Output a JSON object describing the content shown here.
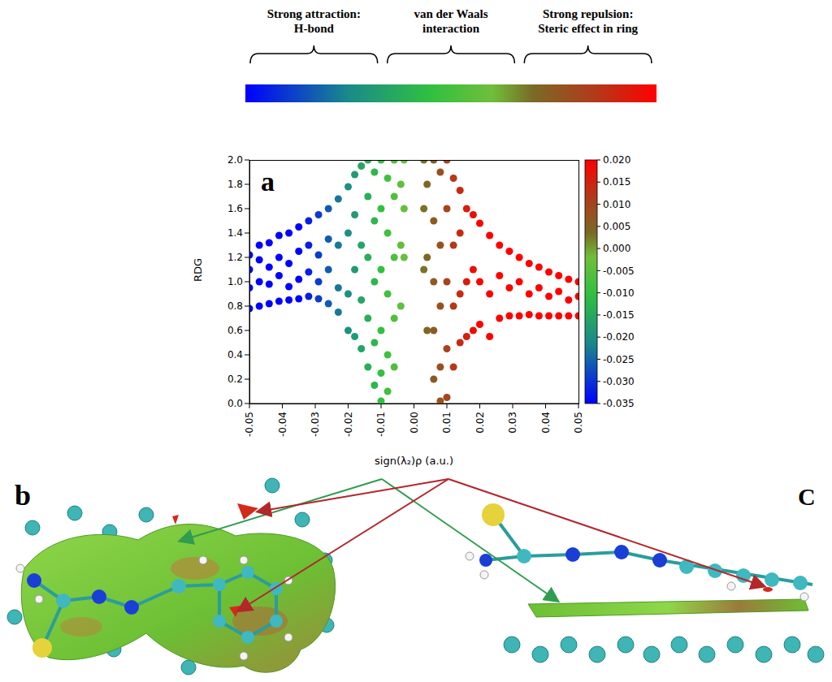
{
  "legend_bar": {
    "labels": [
      {
        "lines": [
          "Strong attraction:",
          "H-bond"
        ]
      },
      {
        "lines": [
          "van der Waals",
          "interaction"
        ]
      },
      {
        "lines": [
          "Strong repulsion:",
          "Steric effect in ring"
        ]
      }
    ]
  },
  "chart_data": {
    "type": "scatter",
    "panel": "a",
    "x_label": "sign(λ₂)ρ (a.u.)",
    "y_label": "RDG",
    "xlim": [
      -0.05,
      0.05
    ],
    "xticks": [
      -0.05,
      -0.04,
      -0.03,
      -0.02,
      -0.01,
      {
        "value": 0,
        "label": "0.00"
      },
      0.01,
      0.02,
      0.03,
      0.04,
      0.05
    ],
    "ylim": [
      0,
      2
    ],
    "yticks": [
      {
        "value": 0,
        "label": "0.0"
      },
      0.2,
      0.4,
      0.6,
      0.8,
      {
        "value": 1,
        "label": "1.0"
      },
      1.2,
      1.4,
      1.6,
      1.8,
      {
        "value": 2,
        "label": "2.0"
      }
    ],
    "colorbar": {
      "range": [
        -0.035,
        0.02
      ],
      "ticks": [
        {
          "value": 0.02,
          "label": "0.020"
        },
        0.015,
        {
          "value": 0.01,
          "label": "0.010"
        },
        0.005,
        {
          "value": 0,
          "label": "0.000"
        },
        -0.005,
        {
          "value": -0.01,
          "label": "-0.010"
        },
        -0.015,
        {
          "value": -0.02,
          "label": "-0.020"
        },
        -0.025,
        {
          "value": -0.03,
          "label": "-0.030"
        },
        -0.035
      ]
    },
    "points": [
      [
        -0.05,
        0.78
      ],
      [
        -0.05,
        0.95
      ],
      [
        -0.05,
        1.1
      ],
      [
        -0.05,
        1.22
      ],
      [
        -0.047,
        0.8
      ],
      [
        -0.047,
        1.0
      ],
      [
        -0.047,
        1.18
      ],
      [
        -0.047,
        1.3
      ],
      [
        -0.044,
        0.82
      ],
      [
        -0.044,
        0.98
      ],
      [
        -0.044,
        1.12
      ],
      [
        -0.044,
        1.32
      ],
      [
        -0.041,
        0.84
      ],
      [
        -0.041,
        1.05
      ],
      [
        -0.041,
        1.2
      ],
      [
        -0.041,
        1.38
      ],
      [
        -0.038,
        0.85
      ],
      [
        -0.038,
        0.96
      ],
      [
        -0.038,
        1.15
      ],
      [
        -0.038,
        1.4
      ],
      [
        -0.035,
        0.86
      ],
      [
        -0.035,
        1.02
      ],
      [
        -0.035,
        1.25
      ],
      [
        -0.035,
        1.45
      ],
      [
        -0.032,
        0.88
      ],
      [
        -0.032,
        1.08
      ],
      [
        -0.032,
        1.3
      ],
      [
        -0.032,
        1.5
      ],
      [
        -0.029,
        0.86
      ],
      [
        -0.029,
        1.0
      ],
      [
        -0.029,
        1.22
      ],
      [
        -0.029,
        1.55
      ],
      [
        -0.026,
        0.82
      ],
      [
        -0.026,
        1.1
      ],
      [
        -0.026,
        1.35
      ],
      [
        -0.026,
        1.6
      ],
      [
        -0.023,
        0.75
      ],
      [
        -0.023,
        0.95
      ],
      [
        -0.023,
        1.3
      ],
      [
        -0.023,
        1.68
      ],
      [
        -0.02,
        0.6
      ],
      [
        -0.02,
        0.9
      ],
      [
        -0.02,
        1.4
      ],
      [
        -0.02,
        1.78
      ],
      [
        -0.018,
        0.55
      ],
      [
        -0.018,
        1.1
      ],
      [
        -0.018,
        1.55
      ],
      [
        -0.018,
        1.88
      ],
      [
        -0.016,
        0.45
      ],
      [
        -0.016,
        0.85
      ],
      [
        -0.016,
        1.3
      ],
      [
        -0.016,
        1.95
      ],
      [
        -0.014,
        0.3
      ],
      [
        -0.014,
        0.7
      ],
      [
        -0.014,
        1.2
      ],
      [
        -0.014,
        1.7
      ],
      [
        -0.014,
        2.0
      ],
      [
        -0.012,
        0.15
      ],
      [
        -0.012,
        0.5
      ],
      [
        -0.012,
        1.0
      ],
      [
        -0.012,
        1.5
      ],
      [
        -0.012,
        1.9
      ],
      [
        -0.01,
        0.02
      ],
      [
        -0.01,
        0.25
      ],
      [
        -0.01,
        0.6
      ],
      [
        -0.01,
        1.1
      ],
      [
        -0.01,
        1.6
      ],
      [
        -0.01,
        2.0
      ],
      [
        -0.008,
        0.1
      ],
      [
        -0.008,
        0.4
      ],
      [
        -0.008,
        0.9
      ],
      [
        -0.008,
        1.4
      ],
      [
        -0.008,
        1.85
      ],
      [
        -0.006,
        0.3
      ],
      [
        -0.006,
        0.7
      ],
      [
        -0.006,
        1.2
      ],
      [
        -0.006,
        1.7
      ],
      [
        -0.006,
        2.0
      ],
      [
        -0.004,
        0.8
      ],
      [
        -0.004,
        1.3
      ],
      [
        -0.004,
        1.8
      ],
      [
        -0.003,
        1.2
      ],
      [
        -0.003,
        1.6
      ],
      [
        -0.003,
        2.0
      ],
      [
        0.003,
        1.1
      ],
      [
        0.003,
        1.6
      ],
      [
        0.003,
        2.0
      ],
      [
        0.004,
        0.6
      ],
      [
        0.004,
        1.2
      ],
      [
        0.004,
        1.8
      ],
      [
        0.006,
        0.2
      ],
      [
        0.006,
        0.6
      ],
      [
        0.006,
        1.0
      ],
      [
        0.006,
        1.5
      ],
      [
        0.006,
        2.0
      ],
      [
        0.008,
        0.02
      ],
      [
        0.008,
        0.3
      ],
      [
        0.008,
        0.8
      ],
      [
        0.008,
        1.3
      ],
      [
        0.008,
        1.9
      ],
      [
        0.01,
        0.05
      ],
      [
        0.01,
        0.45
      ],
      [
        0.01,
        1.0
      ],
      [
        0.01,
        1.6
      ],
      [
        0.01,
        2.0
      ],
      [
        0.012,
        0.3
      ],
      [
        0.012,
        0.8
      ],
      [
        0.012,
        1.3
      ],
      [
        0.012,
        1.85
      ],
      [
        0.014,
        0.5
      ],
      [
        0.014,
        0.9
      ],
      [
        0.014,
        1.4
      ],
      [
        0.014,
        1.75
      ],
      [
        0.016,
        0.55
      ],
      [
        0.016,
        1.0
      ],
      [
        0.016,
        1.6
      ],
      [
        0.018,
        0.6
      ],
      [
        0.018,
        1.1
      ],
      [
        0.018,
        1.55
      ],
      [
        0.02,
        0.65
      ],
      [
        0.02,
        1.0
      ],
      [
        0.02,
        1.48
      ],
      [
        0.023,
        0.55
      ],
      [
        0.023,
        0.9
      ],
      [
        0.023,
        1.38
      ],
      [
        0.026,
        0.7
      ],
      [
        0.026,
        1.05
      ],
      [
        0.026,
        1.3
      ],
      [
        0.029,
        0.72
      ],
      [
        0.029,
        0.95
      ],
      [
        0.029,
        1.25
      ],
      [
        0.032,
        0.72
      ],
      [
        0.032,
        1.0
      ],
      [
        0.032,
        1.2
      ],
      [
        0.035,
        0.73
      ],
      [
        0.035,
        0.9
      ],
      [
        0.035,
        1.15
      ],
      [
        0.038,
        0.72
      ],
      [
        0.038,
        0.95
      ],
      [
        0.038,
        1.12
      ],
      [
        0.041,
        0.72
      ],
      [
        0.041,
        0.88
      ],
      [
        0.041,
        1.08
      ],
      [
        0.044,
        0.72
      ],
      [
        0.044,
        0.92
      ],
      [
        0.044,
        1.05
      ],
      [
        0.047,
        0.72
      ],
      [
        0.047,
        0.85
      ],
      [
        0.047,
        1.02
      ],
      [
        0.05,
        0.72
      ],
      [
        0.05,
        0.88
      ],
      [
        0.05,
        1.0
      ]
    ]
  },
  "panel_labels": [
    "b",
    "C"
  ]
}
